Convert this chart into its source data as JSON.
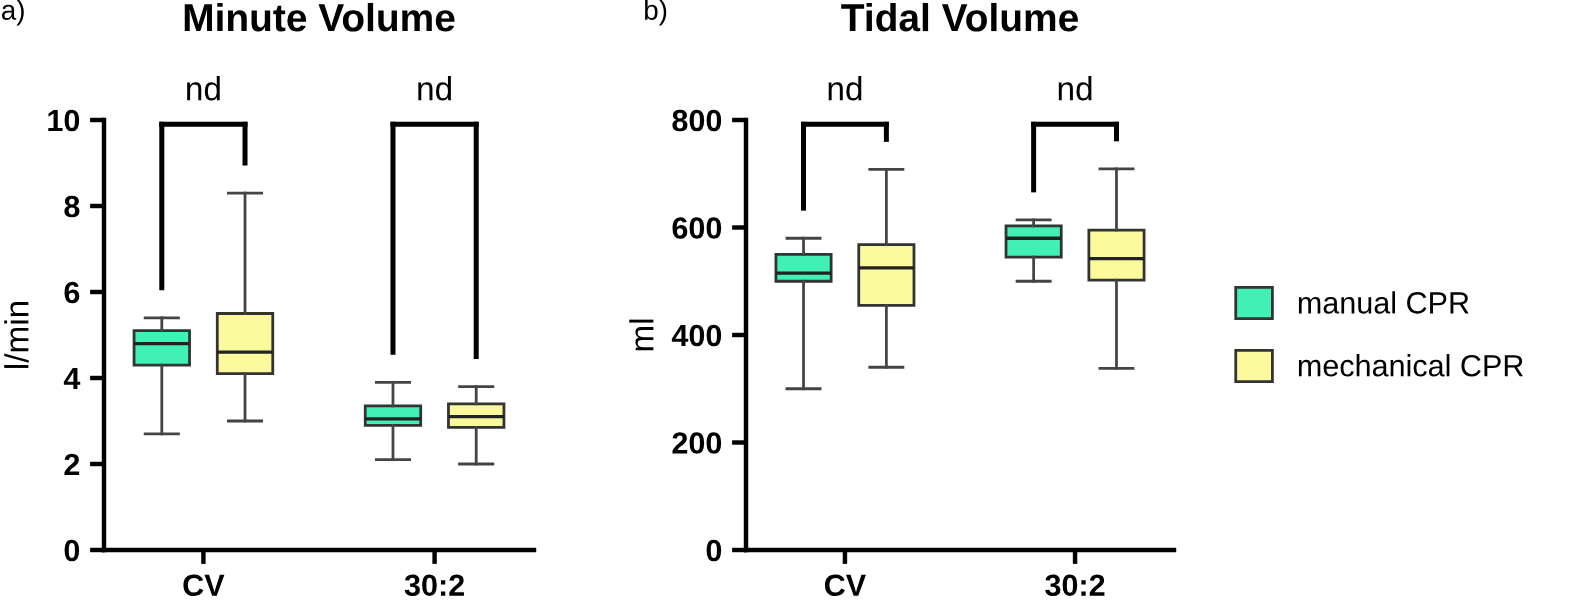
{
  "chart_data": [
    {
      "type": "box",
      "title": "Minute Volume",
      "ylabel": "l/min",
      "categories": [
        "CV",
        "30:2"
      ],
      "ylim": [
        0,
        10
      ],
      "yticks": [
        0,
        2,
        4,
        6,
        8,
        10
      ],
      "grid": false,
      "legend": false,
      "series": [
        {
          "color": "#40f0b4",
          "boxes": [
            {
              "low": 2.7,
              "q1": 4.3,
              "median": 4.8,
              "q3": 5.1,
              "high": 5.4
            },
            {
              "low": 2.1,
              "q1": 2.9,
              "median": 3.05,
              "q3": 3.35,
              "high": 3.9
            }
          ]
        },
        {
          "color": "#fafa9c",
          "boxes": [
            {
              "low": 3.0,
              "q1": 4.1,
              "median": 4.6,
              "q3": 5.5,
              "high": 8.3
            },
            {
              "low": 2.0,
              "q1": 2.85,
              "median": 3.1,
              "q3": 3.4,
              "high": 3.8
            }
          ]
        }
      ],
      "annotations": [
        "a)",
        "nd",
        "nd"
      ]
    },
    {
      "type": "box",
      "title": "Tidal Volume",
      "ylabel": "ml",
      "categories": [
        "CV",
        "30:2"
      ],
      "ylim": [
        0,
        800
      ],
      "yticks": [
        0,
        200,
        400,
        600,
        800
      ],
      "grid": false,
      "legend": "right",
      "series": [
        {
          "name": "manual CPR",
          "color": "#40f0b4",
          "boxes": [
            {
              "low": 300,
              "q1": 500,
              "median": 515,
              "q3": 550,
              "high": 580
            },
            {
              "low": 500,
              "q1": 545,
              "median": 580,
              "q3": 603,
              "high": 614
            }
          ]
        },
        {
          "name": "mechanical CPR",
          "color": "#fafa9c",
          "boxes": [
            {
              "low": 340,
              "q1": 455,
              "median": 525,
              "q3": 568,
              "high": 708
            },
            {
              "low": 338,
              "q1": 502,
              "median": 542,
              "q3": 595,
              "high": 709
            }
          ]
        }
      ],
      "annotations": [
        "b)",
        "nd",
        "nd"
      ]
    }
  ]
}
